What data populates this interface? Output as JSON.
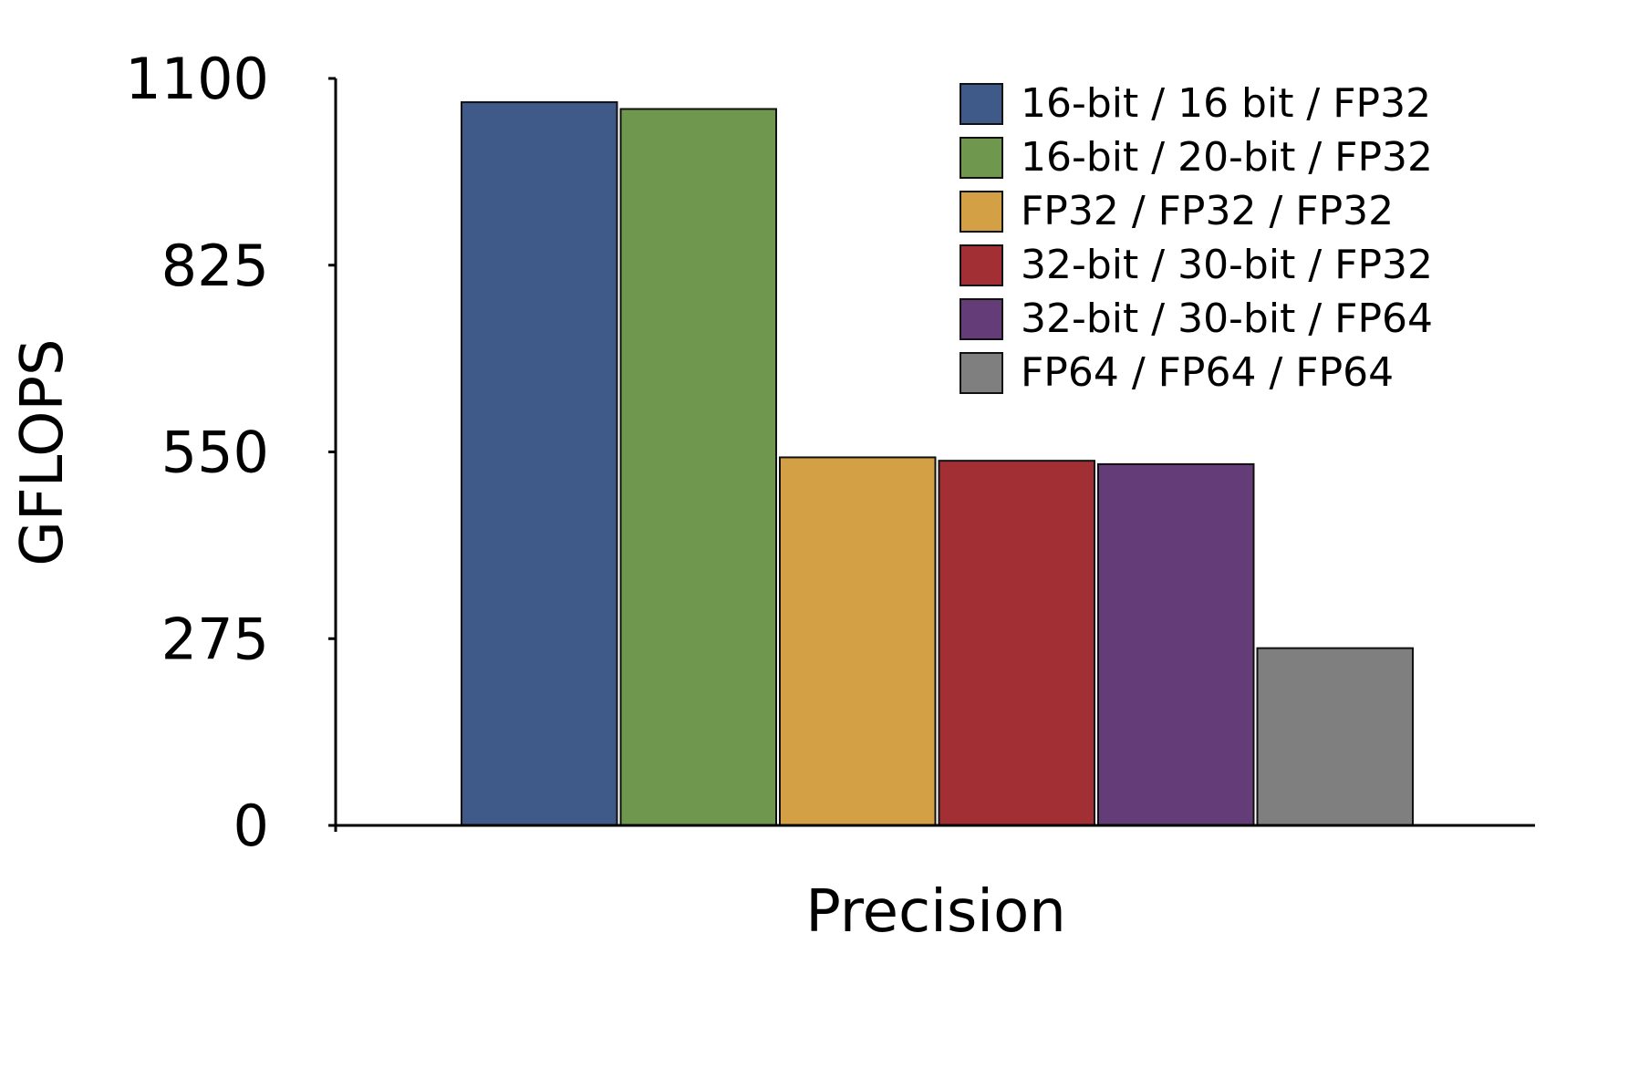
{
  "chart_data": {
    "type": "bar",
    "title": "",
    "xlabel": "Precision",
    "ylabel": "GFLOPS",
    "ylim": [
      0,
      1100
    ],
    "yticks": [
      "0",
      "275",
      "550",
      "825",
      "1100"
    ],
    "grid": false,
    "legend_position": "top-right",
    "series": [
      {
        "name": "16-bit / 16 bit / FP32",
        "value": 1065,
        "color": "#3f5988"
      },
      {
        "name": "16-bit / 20-bit / FP32",
        "value": 1055,
        "color": "#6f974e"
      },
      {
        "name": "FP32 / FP32 / FP32",
        "value": 542,
        "color": "#d3a045"
      },
      {
        "name": "32-bit / 30-bit / FP32",
        "value": 537,
        "color": "#a12f33"
      },
      {
        "name": "32-bit / 30-bit / FP64",
        "value": 532,
        "color": "#643d78"
      },
      {
        "name": "FP64 / FP64 / FP64",
        "value": 261,
        "color": "#7f7f7f"
      }
    ]
  }
}
